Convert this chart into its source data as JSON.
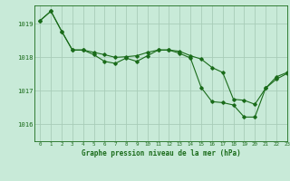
{
  "background_color": "#c8ead8",
  "grid_color": "#a8cdb8",
  "line_color": "#1a6b1a",
  "xlabel": "Graphe pression niveau de la mer (hPa)",
  "xlim": [
    -0.5,
    23
  ],
  "ylim": [
    1015.5,
    1019.55
  ],
  "yticks": [
    1016,
    1017,
    1018,
    1019
  ],
  "xticks": [
    0,
    1,
    2,
    3,
    4,
    5,
    6,
    7,
    8,
    9,
    10,
    11,
    12,
    13,
    14,
    15,
    16,
    17,
    18,
    19,
    20,
    21,
    22,
    23
  ],
  "series1_x": [
    0,
    1,
    2,
    3,
    4,
    5,
    6,
    7,
    8,
    9,
    10,
    11,
    12,
    13,
    14,
    15,
    16,
    17,
    18,
    19,
    20,
    21,
    22,
    23
  ],
  "series1_y": [
    1019.1,
    1019.38,
    1018.78,
    1018.22,
    1018.22,
    1018.15,
    1018.08,
    1018.0,
    1018.02,
    1018.05,
    1018.15,
    1018.22,
    1018.22,
    1018.18,
    1018.05,
    1017.95,
    1017.7,
    1017.55,
    1016.75,
    1016.72,
    1016.6,
    1017.08,
    1017.42,
    1017.55
  ],
  "series2_x": [
    0,
    1,
    2,
    3,
    4,
    5,
    6,
    7,
    8,
    9,
    10,
    11,
    12,
    13,
    14,
    15,
    16,
    17,
    18,
    19,
    20,
    21,
    22,
    23
  ],
  "series2_y": [
    1019.1,
    1019.38,
    1018.78,
    1018.22,
    1018.22,
    1018.08,
    1017.88,
    1017.82,
    1017.98,
    1017.88,
    1018.05,
    1018.22,
    1018.22,
    1018.12,
    1017.98,
    1017.1,
    1016.68,
    1016.65,
    1016.58,
    1016.22,
    1016.22,
    1017.08,
    1017.35,
    1017.52
  ]
}
